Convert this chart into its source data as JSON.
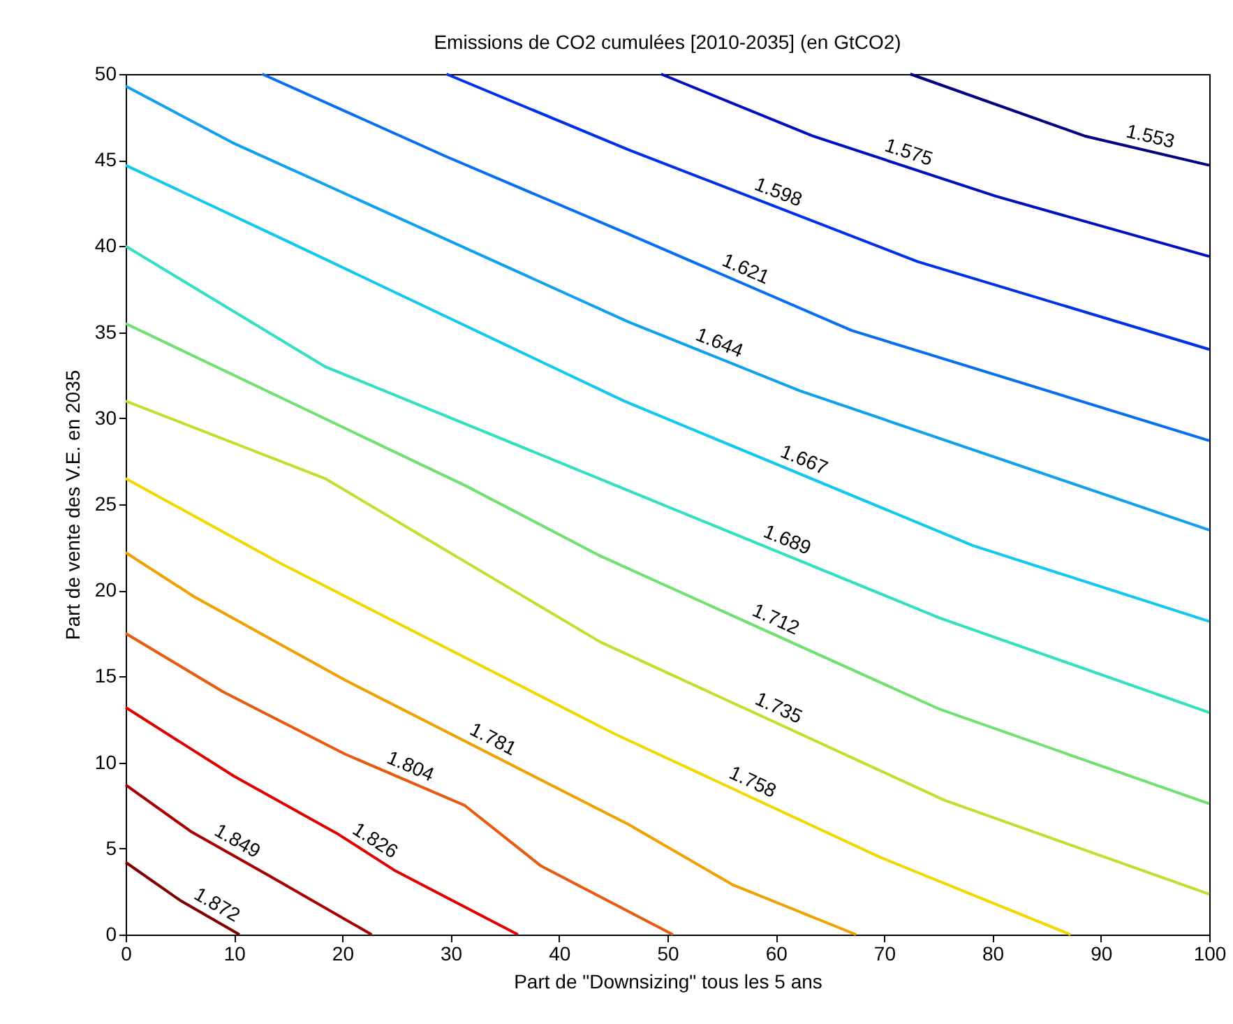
{
  "chart_data": {
    "type": "line",
    "title": "Emissions de CO2 cumulées [2010-2035] (en GtCO2)",
    "xlabel": "Part de \"Downsizing\" tous les 5 ans",
    "ylabel": "Part de vente des V.E. en 2035",
    "xlim": [
      0,
      100
    ],
    "ylim": [
      0,
      50
    ],
    "xticks": [
      0,
      10,
      20,
      30,
      40,
      50,
      60,
      70,
      80,
      90,
      100
    ],
    "yticks": [
      0,
      5,
      10,
      15,
      20,
      25,
      30,
      35,
      40,
      45,
      50
    ],
    "series": [
      {
        "name": "1.872",
        "color": "#800000",
        "x": [
          0,
          5,
          10.5
        ],
        "values": [
          4.2,
          2,
          0
        ]
      },
      {
        "name": "1.849",
        "color": "#a80000",
        "x": [
          0,
          6,
          13.3,
          22.7
        ],
        "values": [
          8.7,
          6,
          3.4,
          0
        ]
      },
      {
        "name": "1.826",
        "color": "#e00000",
        "x": [
          0,
          10,
          19.7,
          24.9,
          36.2
        ],
        "values": [
          13.2,
          9.2,
          5.8,
          3.7,
          0
        ]
      },
      {
        "name": "1.804",
        "color": "#e85a10",
        "x": [
          0,
          9,
          20.2,
          31.3,
          38.3,
          50.5
        ],
        "values": [
          17.5,
          14.1,
          10.5,
          7.5,
          4,
          0
        ]
      },
      {
        "name": "1.781",
        "color": "#f0a000",
        "x": [
          0,
          6.4,
          20.2,
          46.4,
          56,
          67.4
        ],
        "values": [
          22.2,
          19.6,
          14.8,
          6.4,
          2.9,
          0
        ]
      },
      {
        "name": "1.758",
        "color": "#f0d800",
        "x": [
          0,
          14.2,
          45,
          69.6,
          87.2
        ],
        "values": [
          26.5,
          21.6,
          11.7,
          4.5,
          0
        ]
      },
      {
        "name": "1.735",
        "color": "#c0e030",
        "x": [
          0,
          18.4,
          43.8,
          75.6,
          100
        ],
        "values": [
          31,
          26.5,
          17,
          7.8,
          2.35
        ]
      },
      {
        "name": "1.712",
        "color": "#70e070",
        "x": [
          0,
          31.3,
          43.8,
          75.1,
          100
        ],
        "values": [
          35.5,
          26.1,
          22,
          13.1,
          7.6
        ]
      },
      {
        "name": "1.689",
        "color": "#30e0c0",
        "x": [
          0,
          18.4,
          46,
          75.1,
          100
        ],
        "values": [
          40,
          33,
          25.9,
          18.4,
          12.9
        ]
      },
      {
        "name": "1.667",
        "color": "#10c8f0",
        "x": [
          0,
          14.2,
          46,
          78.2,
          100
        ],
        "values": [
          44.7,
          40.5,
          31,
          22.6,
          18.2
        ]
      },
      {
        "name": "1.644",
        "color": "#10a0f0",
        "x": [
          0,
          9.9,
          46.4,
          62.2,
          100
        ],
        "values": [
          49.3,
          46,
          35.6,
          31.6,
          23.5
        ]
      },
      {
        "name": "1.621",
        "color": "#0870f0",
        "x": [
          12.6,
          29.6,
          46.4,
          67,
          100
        ],
        "values": [
          50,
          45.2,
          40.7,
          35.1,
          28.7
        ]
      },
      {
        "name": "1.598",
        "color": "#0030e8",
        "x": [
          29.6,
          46.4,
          73.1,
          100
        ],
        "values": [
          50,
          45.6,
          39.1,
          34
        ]
      },
      {
        "name": "1.575",
        "color": "#0010c0",
        "x": [
          49.4,
          63.4,
          80.3,
          100
        ],
        "values": [
          50,
          46.4,
          42.9,
          39.4
        ]
      },
      {
        "name": "1.553",
        "color": "#000080",
        "x": [
          72.4,
          88.5,
          100
        ],
        "values": [
          50,
          46.4,
          44.7
        ]
      }
    ]
  }
}
